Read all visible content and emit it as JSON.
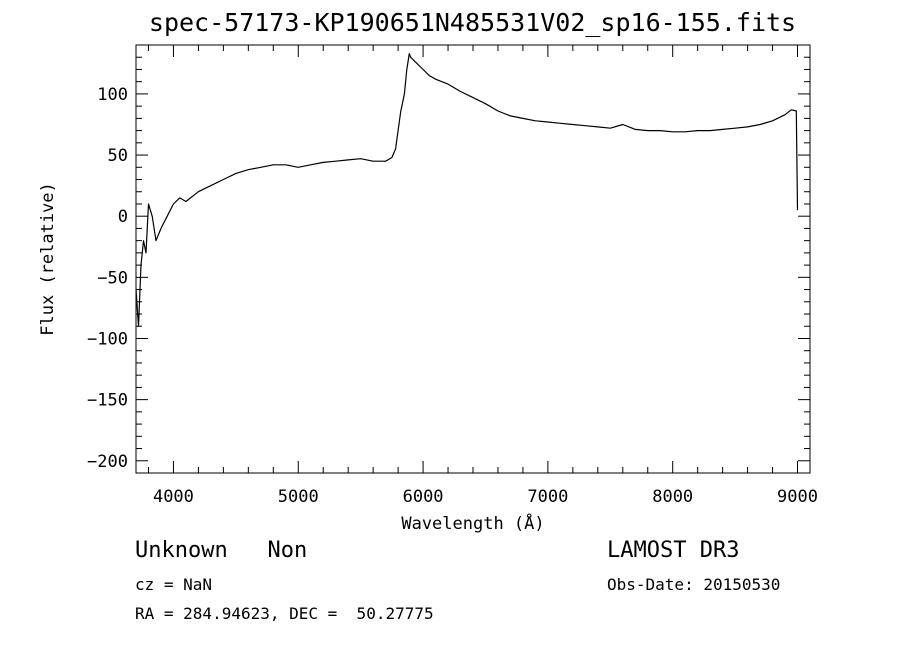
{
  "chart_data": {
    "type": "line",
    "title": "spec-57173-KP190651N485531V02_sp16-155.fits",
    "xlabel": "Wavelength (Å)",
    "ylabel": "Flux (relative)",
    "xlim": [
      3700,
      9100
    ],
    "ylim": [
      -210,
      140
    ],
    "xticks": [
      4000,
      5000,
      6000,
      7000,
      8000,
      9000
    ],
    "yticks": [
      -200,
      -150,
      -100,
      -50,
      0,
      50,
      100
    ],
    "grid": false,
    "series": [
      {
        "x": [
          3700,
          3720,
          3740,
          3760,
          3780,
          3800,
          3830,
          3860,
          3900,
          3950,
          4000,
          4050,
          4100,
          4200,
          4300,
          4400,
          4500,
          4600,
          4700,
          4800,
          4900,
          5000,
          5100,
          5200,
          5300,
          5400,
          5500,
          5600,
          5700,
          5750,
          5780,
          5800,
          5820,
          5850,
          5870,
          5890,
          5900,
          5920,
          5950,
          6000,
          6050,
          6100,
          6200,
          6300,
          6400,
          6500,
          6600,
          6700,
          6800,
          6900,
          7000,
          7100,
          7200,
          7300,
          7400,
          7500,
          7600,
          7700,
          7800,
          7900,
          8000,
          8100,
          8200,
          8300,
          8400,
          8500,
          8600,
          8700,
          8800,
          8900,
          8950,
          8990,
          9000
        ],
        "y": [
          -60,
          -90,
          -40,
          -20,
          -30,
          10,
          0,
          -20,
          -10,
          0,
          10,
          15,
          12,
          20,
          25,
          30,
          35,
          38,
          40,
          42,
          42,
          40,
          42,
          44,
          45,
          46,
          47,
          45,
          45,
          48,
          55,
          70,
          85,
          100,
          120,
          133,
          130,
          128,
          125,
          120,
          115,
          112,
          108,
          102,
          97,
          92,
          86,
          82,
          80,
          78,
          77,
          76,
          75,
          74,
          73,
          72,
          75,
          71,
          70,
          70,
          69,
          69,
          70,
          70,
          71,
          72,
          73,
          75,
          78,
          83,
          87,
          86,
          5
        ]
      }
    ]
  },
  "footer": {
    "class_label": "Unknown   Non",
    "survey_label": "LAMOST DR3",
    "redshift": "cz = NaN",
    "obs_date": "Obs-Date: 20150530",
    "coords": "RA = 284.94623, DEC =  50.27775"
  },
  "colors": {
    "line": "#000000",
    "background": "#ffffff"
  }
}
